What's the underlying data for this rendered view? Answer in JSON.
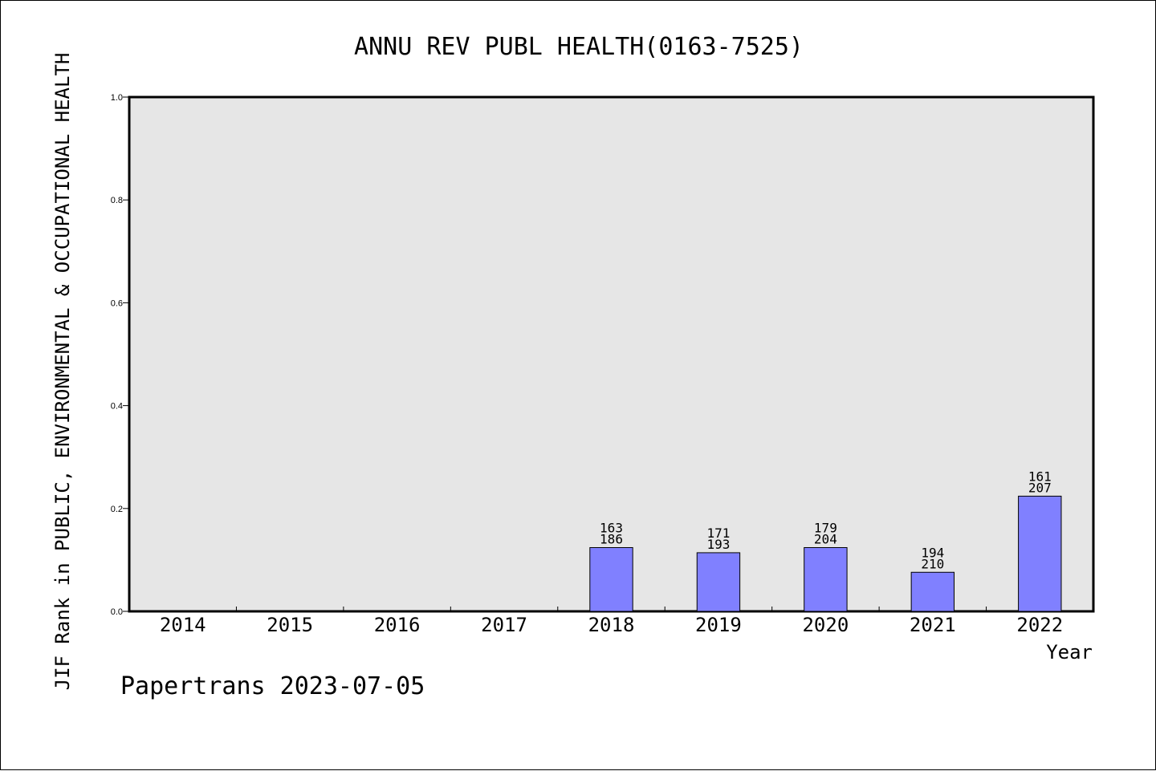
{
  "chart_data": {
    "type": "bar",
    "title": "ANNU REV PUBL HEALTH(0163-7525)",
    "xlabel": "Year",
    "ylabel": "JIF Rank in PUBLIC, ENVIRONMENTAL & OCCUPATIONAL HEALTH",
    "categories": [
      "2014",
      "2015",
      "2016",
      "2017",
      "2018",
      "2019",
      "2020",
      "2021",
      "2022"
    ],
    "values": [
      null,
      null,
      null,
      null,
      0.124,
      0.114,
      0.124,
      0.076,
      0.224
    ],
    "bar_labels": [
      null,
      null,
      null,
      null,
      {
        "rank": "163",
        "total": "186"
      },
      {
        "rank": "171",
        "total": "193"
      },
      {
        "rank": "179",
        "total": "204"
      },
      {
        "rank": "194",
        "total": "210"
      },
      {
        "rank": "161",
        "total": "207"
      }
    ],
    "yticks": [
      "0.0",
      "0.2",
      "0.4",
      "0.6",
      "0.8",
      "1.0"
    ],
    "ylim": [
      0,
      1.0
    ],
    "grid": false,
    "colors": {
      "bar": "#8080ff",
      "plot_background": "#e6e6e6"
    }
  },
  "footer": "Papertrans 2023-07-05"
}
